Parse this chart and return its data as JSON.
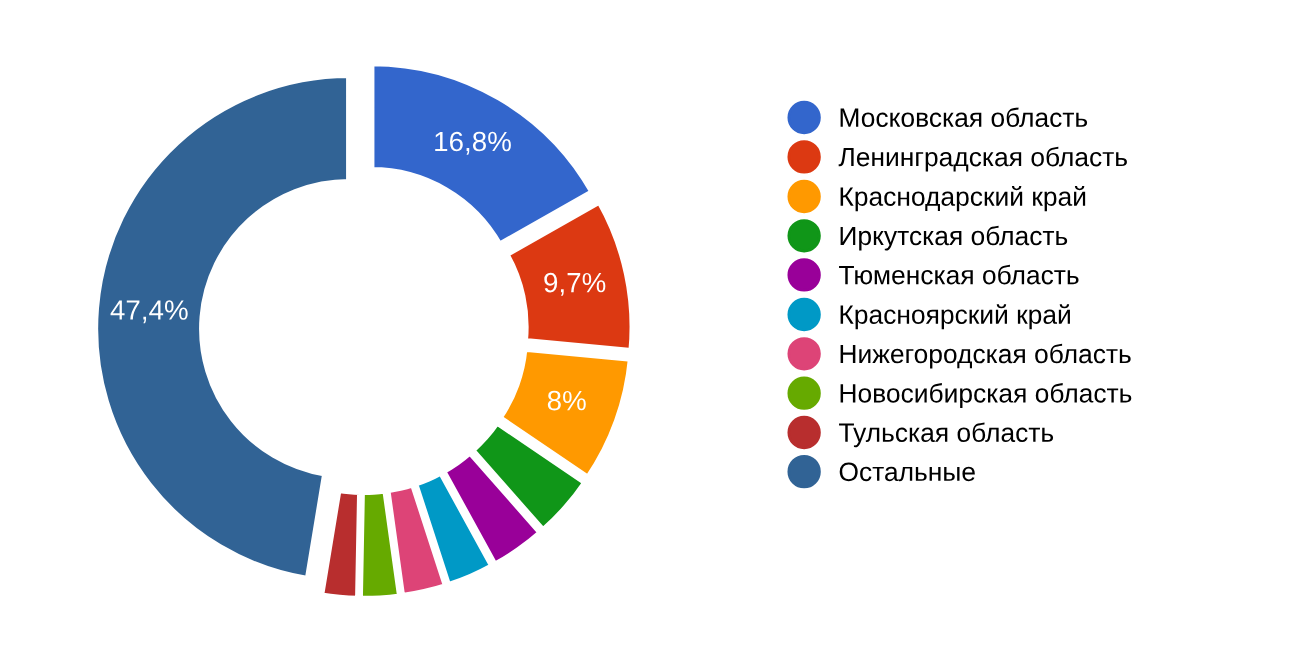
{
  "chart_data": {
    "type": "donut",
    "categories": [
      "Московская область",
      "Ленинградская область",
      "Краснодарский край",
      "Иркутская область",
      "Тюменская область",
      "Красноярский край",
      "Нижегородская область",
      "Новосибирская область",
      "Тульская область",
      "Остальные"
    ],
    "values": [
      16.8,
      9.7,
      8,
      4,
      3.5,
      3,
      2.8,
      2.5,
      2.3,
      47.4
    ],
    "colors": [
      "#3366cc",
      "#dc3912",
      "#ff9900",
      "#109618",
      "#990099",
      "#0099c6",
      "#dd4477",
      "#66aa00",
      "#b82e2e",
      "#316395"
    ],
    "value_labels": [
      "16,8%",
      "9,7%",
      "8%",
      null,
      null,
      null,
      null,
      null,
      null,
      "47,4%"
    ],
    "legend": "right"
  }
}
